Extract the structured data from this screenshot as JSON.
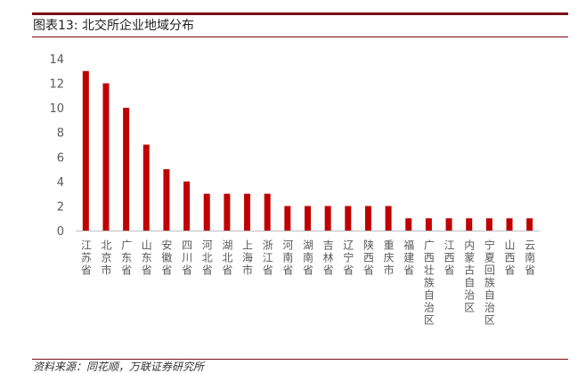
{
  "figure": {
    "title": "图表13:  北交所企业地域分布",
    "source": "资料来源：同花顺，万联证券研究所"
  },
  "colors": {
    "bar": "#C00000",
    "rule": "#7B0A14",
    "axis": "#bfbfbf",
    "tick_label": "#595959"
  },
  "chart_data": {
    "type": "bar",
    "categories": [
      "江苏省",
      "北京市",
      "广东省",
      "山东省",
      "安徽省",
      "四川省",
      "河北省",
      "湖北省",
      "上海市",
      "浙江省",
      "河南省",
      "湖南省",
      "吉林省",
      "辽宁省",
      "陕西省",
      "重庆市",
      "福建省",
      "广西壮族自治区",
      "江西省",
      "内蒙古自治区",
      "宁夏回族自治区",
      "山西省",
      "云南省"
    ],
    "values": [
      13,
      12,
      10,
      7,
      5,
      4,
      3,
      3,
      3,
      3,
      2,
      2,
      2,
      2,
      2,
      2,
      1,
      1,
      1,
      1,
      1,
      1,
      1
    ],
    "yticks": [
      0,
      2,
      4,
      6,
      8,
      10,
      12,
      14
    ],
    "ylim": [
      0,
      14
    ],
    "grid": false,
    "legend": "none"
  }
}
